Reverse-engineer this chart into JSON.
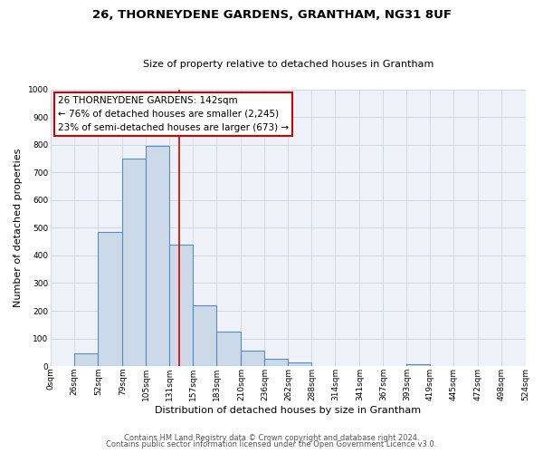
{
  "title": "26, THORNEYDENE GARDENS, GRANTHAM, NG31 8UF",
  "subtitle": "Size of property relative to detached houses in Grantham",
  "xlabel": "Distribution of detached houses by size in Grantham",
  "ylabel": "Number of detached properties",
  "bin_edges": [
    0,
    26,
    52,
    79,
    105,
    131,
    157,
    183,
    210,
    236,
    262,
    288,
    314,
    341,
    367,
    393,
    419,
    445,
    472,
    498,
    524
  ],
  "bin_labels": [
    "0sqm",
    "26sqm",
    "52sqm",
    "79sqm",
    "105sqm",
    "131sqm",
    "157sqm",
    "183sqm",
    "210sqm",
    "236sqm",
    "262sqm",
    "288sqm",
    "314sqm",
    "341sqm",
    "367sqm",
    "393sqm",
    "419sqm",
    "445sqm",
    "472sqm",
    "498sqm",
    "524sqm"
  ],
  "counts": [
    0,
    45,
    485,
    750,
    795,
    440,
    220,
    125,
    55,
    28,
    15,
    0,
    0,
    0,
    0,
    8,
    0,
    0,
    0,
    0
  ],
  "bar_facecolor": "#ccd9e8",
  "bar_edgecolor": "#5b8db8",
  "grid_color": "#d0d8e8",
  "bg_color": "#eef2f8",
  "property_line_x": 142,
  "property_line_color": "#cc0000",
  "annotation_box_color": "#cc0000",
  "annotation_text_line1": "26 THORNEYDENE GARDENS: 142sqm",
  "annotation_text_line2": "← 76% of detached houses are smaller (2,245)",
  "annotation_text_line3": "23% of semi-detached houses are larger (673) →",
  "footer_line1": "Contains HM Land Registry data © Crown copyright and database right 2024.",
  "footer_line2": "Contains public sector information licensed under the Open Government Licence v3.0.",
  "ylim": [
    0,
    1000
  ],
  "yticks": [
    0,
    100,
    200,
    300,
    400,
    500,
    600,
    700,
    800,
    900,
    1000
  ],
  "title_fontsize": 9.5,
  "subtitle_fontsize": 8,
  "xlabel_fontsize": 8,
  "ylabel_fontsize": 8,
  "tick_fontsize": 6.5,
  "annotation_fontsize": 7.5,
  "footer_fontsize": 6
}
